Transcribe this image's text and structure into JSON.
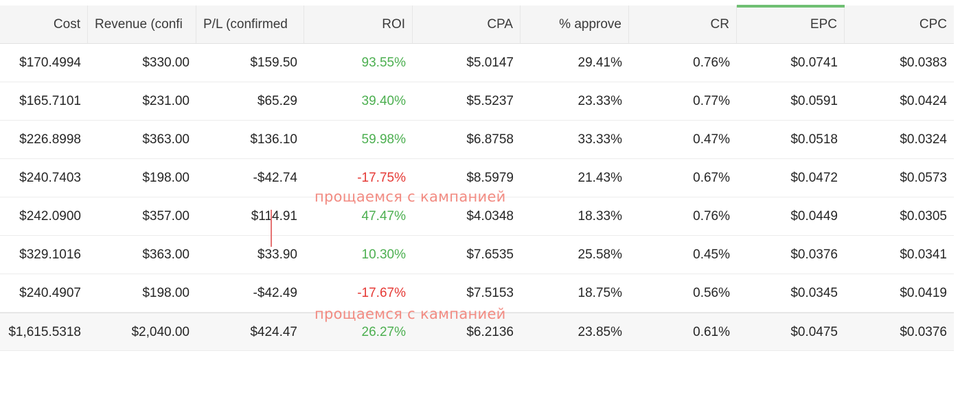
{
  "columns": [
    "Cost",
    "Revenue (confi",
    "P/L (confirmed",
    "ROI",
    "CPA",
    "% approve",
    "CR",
    "EPC",
    "CPC"
  ],
  "rows": [
    {
      "cost": "$170.4994",
      "revenue": "$330.00",
      "pl": "$159.50",
      "roi": "93.55%",
      "roi_sign": "pos",
      "cpa": "$5.0147",
      "approve": "29.41%",
      "cr": "0.76%",
      "epc": "$0.0741",
      "cpc": "$0.0383"
    },
    {
      "cost": "$165.7101",
      "revenue": "$231.00",
      "pl": "$65.29",
      "roi": "39.40%",
      "roi_sign": "pos",
      "cpa": "$5.5237",
      "approve": "23.33%",
      "cr": "0.77%",
      "epc": "$0.0591",
      "cpc": "$0.0424"
    },
    {
      "cost": "$226.8998",
      "revenue": "$363.00",
      "pl": "$136.10",
      "roi": "59.98%",
      "roi_sign": "pos",
      "cpa": "$6.8758",
      "approve": "33.33%",
      "cr": "0.47%",
      "epc": "$0.0518",
      "cpc": "$0.0324"
    },
    {
      "cost": "$240.7403",
      "revenue": "$198.00",
      "pl": "-$42.74",
      "roi": "-17.75%",
      "roi_sign": "neg",
      "cpa": "$8.5979",
      "approve": "21.43%",
      "cr": "0.67%",
      "epc": "$0.0472",
      "cpc": "$0.0573"
    },
    {
      "cost": "$242.0900",
      "revenue": "$357.00",
      "pl": "$114.91",
      "roi": "47.47%",
      "roi_sign": "pos",
      "cpa": "$4.0348",
      "approve": "18.33%",
      "cr": "0.76%",
      "epc": "$0.0449",
      "cpc": "$0.0305"
    },
    {
      "cost": "$329.1016",
      "revenue": "$363.00",
      "pl": "$33.90",
      "roi": "10.30%",
      "roi_sign": "pos",
      "cpa": "$7.6535",
      "approve": "25.58%",
      "cr": "0.45%",
      "epc": "$0.0376",
      "cpc": "$0.0341"
    },
    {
      "cost": "$240.4907",
      "revenue": "$198.00",
      "pl": "-$42.49",
      "roi": "-17.67%",
      "roi_sign": "neg",
      "cpa": "$7.5153",
      "approve": "18.75%",
      "cr": "0.56%",
      "epc": "$0.0345",
      "cpc": "$0.0419"
    }
  ],
  "total": {
    "cost": "$1,615.5318",
    "revenue": "$2,040.00",
    "pl": "$424.47",
    "roi": "26.27%",
    "roi_sign": "pos",
    "cpa": "$6.2136",
    "approve": "23.85%",
    "cr": "0.61%",
    "epc": "$0.0475",
    "cpc": "$0.0376"
  },
  "annotations": [
    "прощаемся с кампанией",
    "прощаемся с кампанией"
  ],
  "colors": {
    "positive": "#4caf50",
    "negative": "#e53935",
    "annotation": "#f28b82",
    "sort_indicator": "#6fbf73"
  }
}
